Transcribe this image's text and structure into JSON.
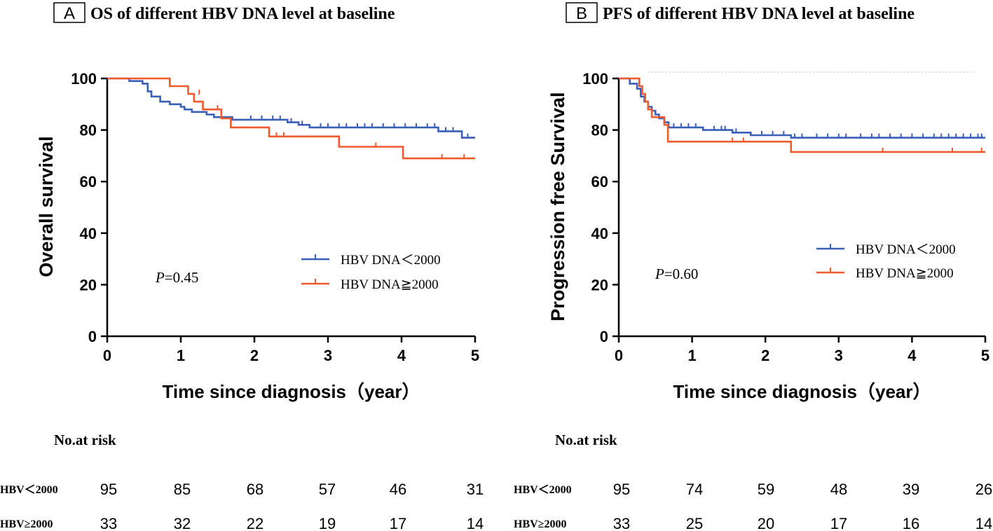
{
  "colors": {
    "group_low": "#3a5fb6",
    "group_high": "#ee5a2c",
    "axis": "#000000",
    "reference_line": "#c8c8c8"
  },
  "chart_data": [
    {
      "type": "line",
      "panel_label": "A",
      "title": "OS of different HBV DNA level at baseline",
      "xlabel": "Time since diagnosis（year）",
      "ylabel": "Overall survival",
      "xlim": [
        0,
        5
      ],
      "ylim": [
        0,
        100
      ],
      "xticks": [
        "0",
        "1",
        "2",
        "3",
        "4",
        "5"
      ],
      "yticks": [
        "0",
        "20",
        "40",
        "60",
        "80",
        "100"
      ],
      "p_value": {
        "label": "P",
        "value": "=0.45"
      },
      "series": [
        {
          "name": "HBV DNA＜2000",
          "color": "#3a5fb6",
          "points": [
            [
              0,
              100
            ],
            [
              0.3,
              100
            ],
            [
              0.3,
              99
            ],
            [
              0.48,
              99
            ],
            [
              0.48,
              98
            ],
            [
              0.55,
              98
            ],
            [
              0.55,
              95
            ],
            [
              0.6,
              95
            ],
            [
              0.6,
              93
            ],
            [
              0.72,
              93
            ],
            [
              0.72,
              91
            ],
            [
              0.85,
              91
            ],
            [
              0.85,
              90
            ],
            [
              1.0,
              90
            ],
            [
              1.0,
              89
            ],
            [
              1.05,
              89
            ],
            [
              1.05,
              88
            ],
            [
              1.15,
              88
            ],
            [
              1.15,
              87
            ],
            [
              1.35,
              87
            ],
            [
              1.35,
              86
            ],
            [
              1.45,
              86
            ],
            [
              1.45,
              85
            ],
            [
              1.7,
              85
            ],
            [
              1.7,
              84
            ],
            [
              2.45,
              84
            ],
            [
              2.45,
              83
            ],
            [
              2.6,
              83
            ],
            [
              2.6,
              82
            ],
            [
              2.75,
              82
            ],
            [
              2.75,
              81
            ],
            [
              4.5,
              81
            ],
            [
              4.5,
              79.5
            ],
            [
              4.82,
              79.5
            ],
            [
              4.82,
              77
            ],
            [
              5.0,
              77
            ]
          ],
          "censors": [
            [
              1.55,
              85
            ],
            [
              1.95,
              84
            ],
            [
              2.1,
              84
            ],
            [
              2.25,
              84
            ],
            [
              2.35,
              84
            ],
            [
              2.5,
              83
            ],
            [
              2.65,
              82
            ],
            [
              2.9,
              81
            ],
            [
              3.0,
              81
            ],
            [
              3.15,
              81
            ],
            [
              3.25,
              81
            ],
            [
              3.4,
              81
            ],
            [
              3.5,
              81
            ],
            [
              3.6,
              81
            ],
            [
              3.75,
              81
            ],
            [
              3.9,
              81
            ],
            [
              4.05,
              81
            ],
            [
              4.2,
              81
            ],
            [
              4.35,
              81
            ],
            [
              4.45,
              81
            ],
            [
              4.6,
              79.5
            ],
            [
              4.7,
              79.5
            ],
            [
              4.9,
              77
            ]
          ]
        },
        {
          "name": "HBV DNA≧2000",
          "color": "#ee5a2c",
          "points": [
            [
              0,
              100
            ],
            [
              0.85,
              100
            ],
            [
              0.85,
              97
            ],
            [
              1.1,
              97
            ],
            [
              1.1,
              94
            ],
            [
              1.18,
              94
            ],
            [
              1.18,
              91
            ],
            [
              1.3,
              91
            ],
            [
              1.3,
              88
            ],
            [
              1.55,
              88
            ],
            [
              1.55,
              84.5
            ],
            [
              1.68,
              84.5
            ],
            [
              1.68,
              81
            ],
            [
              2.2,
              81
            ],
            [
              2.2,
              77.5
            ],
            [
              3.15,
              77.5
            ],
            [
              3.15,
              73.5
            ],
            [
              4.02,
              73.5
            ],
            [
              4.02,
              69
            ],
            [
              5.0,
              69
            ]
          ],
          "censors": [
            [
              1.25,
              94
            ],
            [
              1.5,
              88
            ],
            [
              2.3,
              77.5
            ],
            [
              2.4,
              77.5
            ],
            [
              3.65,
              73.5
            ],
            [
              4.55,
              69
            ],
            [
              4.85,
              69
            ]
          ]
        }
      ],
      "risk_table": {
        "title": "No.at risk",
        "columns": [
          "0",
          "1",
          "2",
          "3",
          "4",
          "5"
        ],
        "rows": [
          {
            "label": "HBV＜2000",
            "values": [
              "95",
              "85",
              "68",
              "57",
              "46",
              "31"
            ]
          },
          {
            "label": "HBV≥2000",
            "values": [
              "33",
              "32",
              "22",
              "19",
              "17",
              "14"
            ]
          }
        ]
      }
    },
    {
      "type": "line",
      "panel_label": "B",
      "title": "PFS of different HBV DNA level at baseline",
      "xlabel": "Time since diagnosis（year）",
      "ylabel": "Progression free Survival",
      "xlim": [
        0,
        5
      ],
      "ylim": [
        0,
        100
      ],
      "xticks": [
        "0",
        "1",
        "2",
        "3",
        "4",
        "5"
      ],
      "yticks": [
        "0",
        "20",
        "40",
        "60",
        "80",
        "100"
      ],
      "p_value": {
        "label": "P",
        "value": "=0.60"
      },
      "series": [
        {
          "name": "HBV DNA＜2000",
          "color": "#3a5fb6",
          "points": [
            [
              0,
              100
            ],
            [
              0.15,
              100
            ],
            [
              0.15,
              98
            ],
            [
              0.25,
              98
            ],
            [
              0.25,
              96
            ],
            [
              0.3,
              96
            ],
            [
              0.3,
              93
            ],
            [
              0.35,
              93
            ],
            [
              0.35,
              91
            ],
            [
              0.4,
              91
            ],
            [
              0.4,
              89
            ],
            [
              0.45,
              89
            ],
            [
              0.45,
              87.5
            ],
            [
              0.5,
              87.5
            ],
            [
              0.5,
              86
            ],
            [
              0.55,
              86
            ],
            [
              0.55,
              84.5
            ],
            [
              0.62,
              84.5
            ],
            [
              0.62,
              83
            ],
            [
              0.68,
              83
            ],
            [
              0.68,
              81
            ],
            [
              1.15,
              81
            ],
            [
              1.15,
              80
            ],
            [
              1.55,
              80
            ],
            [
              1.55,
              79
            ],
            [
              1.8,
              79
            ],
            [
              1.8,
              78
            ],
            [
              2.35,
              78
            ],
            [
              2.35,
              77
            ],
            [
              5.0,
              77
            ]
          ],
          "censors": [
            [
              0.75,
              81
            ],
            [
              0.85,
              81
            ],
            [
              0.95,
              81
            ],
            [
              1.05,
              81
            ],
            [
              1.3,
              80
            ],
            [
              1.4,
              80
            ],
            [
              1.45,
              80
            ],
            [
              1.6,
              79
            ],
            [
              1.95,
              78
            ],
            [
              2.1,
              78
            ],
            [
              2.25,
              78
            ],
            [
              2.4,
              77
            ],
            [
              2.5,
              77
            ],
            [
              2.7,
              77
            ],
            [
              2.85,
              77
            ],
            [
              3.0,
              77
            ],
            [
              3.1,
              77
            ],
            [
              3.3,
              77
            ],
            [
              3.45,
              77
            ],
            [
              3.55,
              77
            ],
            [
              3.7,
              77
            ],
            [
              3.85,
              77
            ],
            [
              4.0,
              77
            ],
            [
              4.15,
              77
            ],
            [
              4.3,
              77
            ],
            [
              4.4,
              77
            ],
            [
              4.5,
              77
            ],
            [
              4.6,
              77
            ],
            [
              4.7,
              77
            ],
            [
              4.8,
              77
            ],
            [
              4.9,
              77
            ],
            [
              4.95,
              77
            ]
          ]
        },
        {
          "name": "HBV DNA≧2000",
          "color": "#ee5a2c",
          "points": [
            [
              0,
              100
            ],
            [
              0.28,
              100
            ],
            [
              0.28,
              97
            ],
            [
              0.32,
              97
            ],
            [
              0.32,
              94
            ],
            [
              0.36,
              94
            ],
            [
              0.36,
              91
            ],
            [
              0.4,
              91
            ],
            [
              0.4,
              88
            ],
            [
              0.45,
              88
            ],
            [
              0.45,
              85
            ],
            [
              0.62,
              85
            ],
            [
              0.62,
              82
            ],
            [
              0.67,
              82
            ],
            [
              0.67,
              75.5
            ],
            [
              2.35,
              75.5
            ],
            [
              2.35,
              71.5
            ],
            [
              5.0,
              71.5
            ]
          ],
          "censors": [
            [
              1.55,
              75.5
            ],
            [
              1.7,
              75.5
            ],
            [
              3.6,
              71.5
            ],
            [
              4.55,
              71.5
            ],
            [
              4.95,
              71.5
            ]
          ]
        }
      ],
      "risk_table": {
        "title": "No.at risk",
        "columns": [
          "0",
          "1",
          "2",
          "3",
          "4",
          "5"
        ],
        "rows": [
          {
            "label": "HBV＜2000",
            "values": [
              "95",
              "74",
              "59",
              "48",
              "39",
              "26"
            ]
          },
          {
            "label": "HBV≥2000",
            "values": [
              "33",
              "25",
              "20",
              "17",
              "16",
              "14"
            ]
          }
        ]
      }
    }
  ]
}
